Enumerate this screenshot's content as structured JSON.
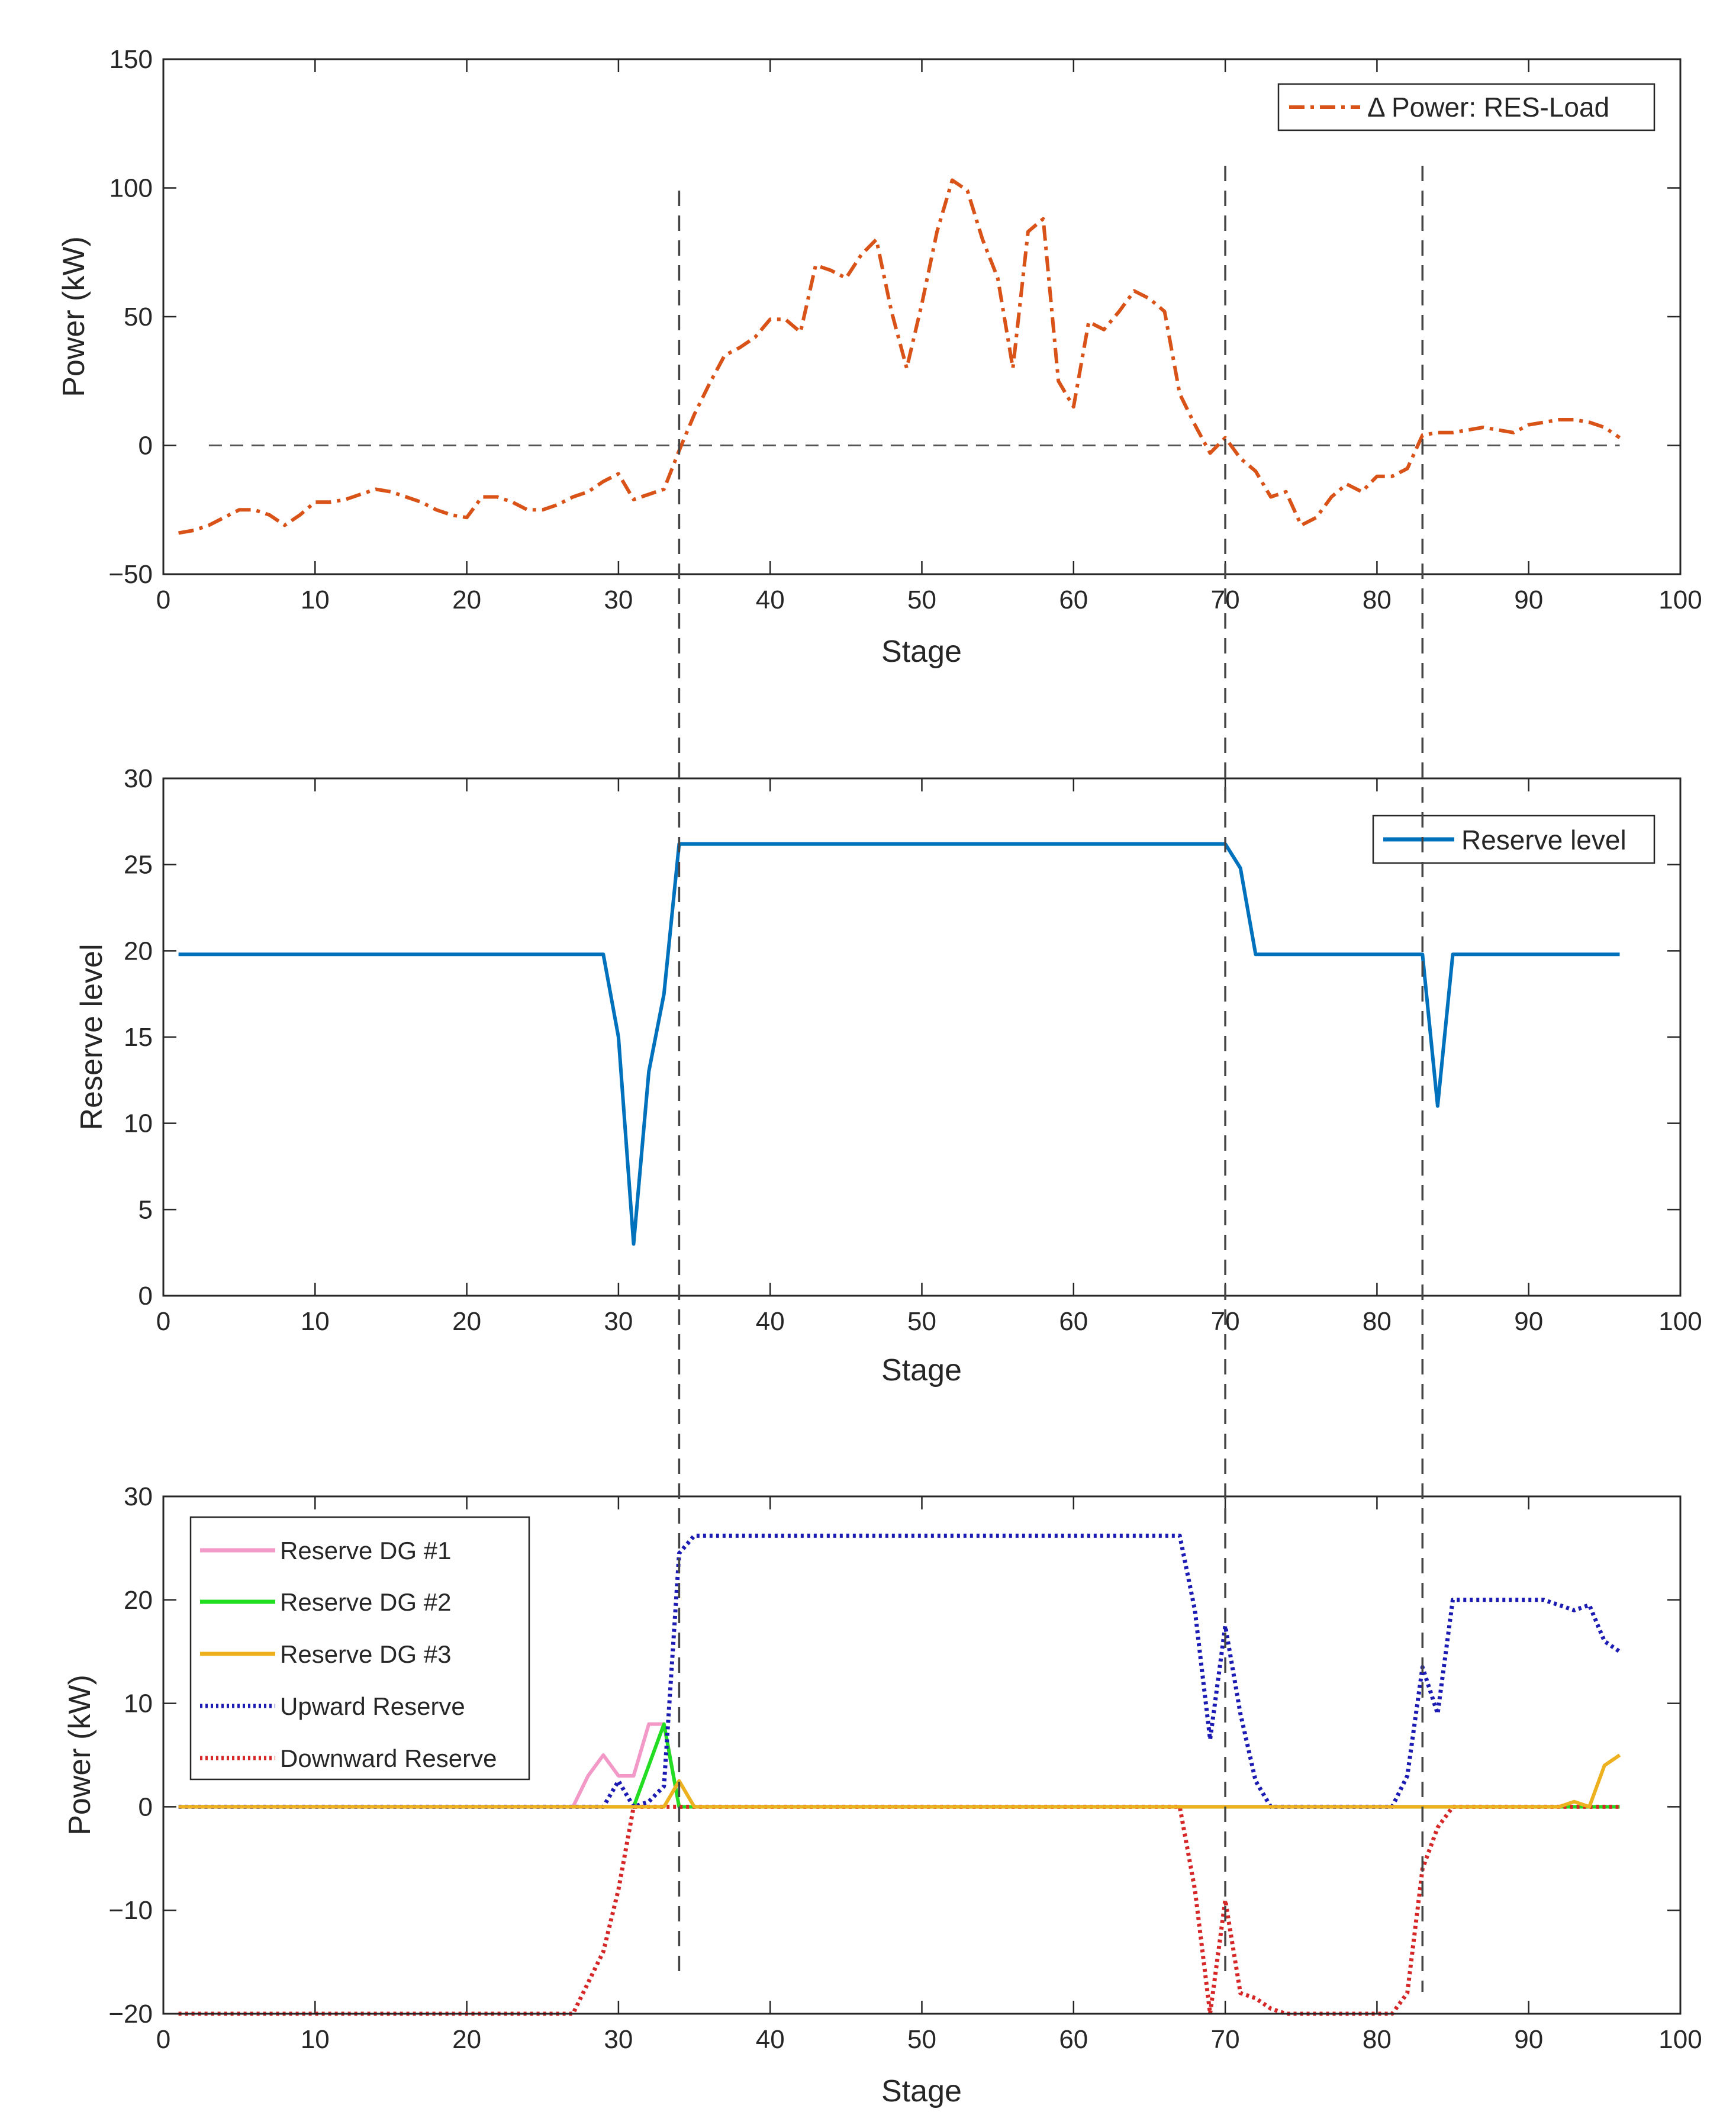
{
  "figure": {
    "x_tick_labels": [
      "0",
      "10",
      "20",
      "30",
      "40",
      "50",
      "60",
      "70",
      "80",
      "90",
      "100"
    ]
  },
  "charts": [
    {
      "type": "line",
      "xlabel": "Stage",
      "ylabel": "Power (kW)",
      "xlim": [
        0,
        100
      ],
      "ylim": [
        -50,
        150
      ],
      "y_tick_labels": [
        "−50",
        "0",
        "50",
        "100",
        "150"
      ],
      "legend": {
        "position": "top-right",
        "entries": [
          "Δ Power: RES-Load"
        ]
      },
      "zero_reference": {
        "x": [
          3,
          96
        ],
        "y": 0
      },
      "vertical_markers": [
        34,
        70,
        83
      ],
      "series": [
        {
          "name": "Δ Power: RES-Load",
          "color": "#D95319",
          "style": "dashdot",
          "x": [
            1,
            2,
            3,
            4,
            5,
            6,
            7,
            8,
            9,
            10,
            11,
            12,
            13,
            14,
            15,
            16,
            17,
            18,
            19,
            20,
            21,
            22,
            23,
            24,
            25,
            26,
            27,
            28,
            29,
            30,
            31,
            32,
            33,
            34,
            35,
            36,
            37,
            38,
            39,
            40,
            41,
            42,
            43,
            44,
            45,
            46,
            47,
            48,
            49,
            50,
            51,
            52,
            53,
            54,
            55,
            56,
            57,
            58,
            59,
            60,
            61,
            62,
            63,
            64,
            65,
            66,
            67,
            68,
            69,
            70,
            71,
            72,
            73,
            74,
            75,
            76,
            77,
            78,
            79,
            80,
            81,
            82,
            83,
            84,
            85,
            86,
            87,
            88,
            89,
            90,
            91,
            92,
            93,
            94,
            95,
            96
          ],
          "y": [
            -34,
            -33,
            -31,
            -28,
            -25,
            -25,
            -27,
            -31,
            -27,
            -22,
            -22,
            -21,
            -19,
            -17,
            -18,
            -20,
            -22,
            -25,
            -27,
            -28,
            -20,
            -20,
            -22,
            -25,
            -25,
            -23,
            -20,
            -18,
            -14,
            -11,
            -21,
            -19,
            -17,
            -2,
            12,
            24,
            35,
            38,
            42,
            49,
            49,
            44,
            70,
            68,
            65,
            74,
            80,
            52,
            30,
            55,
            83,
            103,
            99,
            80,
            65,
            30,
            83,
            88,
            25,
            15,
            48,
            45,
            52,
            60,
            57,
            52,
            20,
            8,
            -3,
            3,
            -5,
            -10,
            -20,
            -18,
            -31,
            -28,
            -20,
            -15,
            -18,
            -12,
            -12,
            -9,
            4,
            5,
            5,
            6,
            7,
            6,
            5,
            8,
            9,
            10,
            10,
            9,
            7,
            3
          ]
        }
      ]
    },
    {
      "type": "line",
      "xlabel": "Stage",
      "ylabel": "Reserve level",
      "xlim": [
        0,
        100
      ],
      "ylim": [
        0,
        30
      ],
      "y_tick_labels": [
        "0",
        "5",
        "10",
        "15",
        "20",
        "25",
        "30"
      ],
      "legend": {
        "position": "top-right",
        "entries": [
          "Reserve level"
        ]
      },
      "vertical_markers": [
        34,
        70,
        83
      ],
      "series": [
        {
          "name": "Reserve level",
          "color": "#0072BD",
          "style": "solid",
          "x": [
            1,
            2,
            3,
            4,
            5,
            6,
            7,
            8,
            9,
            10,
            11,
            12,
            13,
            14,
            15,
            16,
            17,
            18,
            19,
            20,
            21,
            22,
            23,
            24,
            25,
            26,
            27,
            28,
            29,
            30,
            31,
            32,
            33,
            34,
            35,
            36,
            37,
            38,
            39,
            40,
            41,
            42,
            43,
            44,
            45,
            46,
            47,
            48,
            49,
            50,
            51,
            52,
            53,
            54,
            55,
            56,
            57,
            58,
            59,
            60,
            61,
            62,
            63,
            64,
            65,
            66,
            67,
            68,
            69,
            70,
            71,
            72,
            73,
            74,
            75,
            76,
            77,
            78,
            79,
            80,
            81,
            82,
            83,
            84,
            85,
            86,
            87,
            88,
            89,
            90,
            91,
            92,
            93,
            94,
            95,
            96
          ],
          "y": [
            19.8,
            19.8,
            19.8,
            19.8,
            19.8,
            19.8,
            19.8,
            19.8,
            19.8,
            19.8,
            19.8,
            19.8,
            19.8,
            19.8,
            19.8,
            19.8,
            19.8,
            19.8,
            19.8,
            19.8,
            19.8,
            19.8,
            19.8,
            19.8,
            19.8,
            19.8,
            19.8,
            19.8,
            19.8,
            15,
            3,
            13,
            17.5,
            26.2,
            26.2,
            26.2,
            26.2,
            26.2,
            26.2,
            26.2,
            26.2,
            26.2,
            26.2,
            26.2,
            26.2,
            26.2,
            26.2,
            26.2,
            26.2,
            26.2,
            26.2,
            26.2,
            26.2,
            26.2,
            26.2,
            26.2,
            26.2,
            26.2,
            26.2,
            26.2,
            26.2,
            26.2,
            26.2,
            26.2,
            26.2,
            26.2,
            26.2,
            26.2,
            26.2,
            26.2,
            24.8,
            19.8,
            19.8,
            19.8,
            19.8,
            19.8,
            19.8,
            19.8,
            19.8,
            19.8,
            19.8,
            19.8,
            19.8,
            11,
            19.8,
            19.8,
            19.8,
            19.8,
            19.8,
            19.8,
            19.8,
            19.8,
            19.8,
            19.8,
            19.8,
            19.8
          ]
        }
      ]
    },
    {
      "type": "line",
      "xlabel": "Stage",
      "ylabel": "Power (kW)",
      "xlim": [
        0,
        100
      ],
      "ylim": [
        -20,
        30
      ],
      "y_tick_labels": [
        "−20",
        "−10",
        "0",
        "10",
        "20",
        "30"
      ],
      "legend": {
        "position": "top-left",
        "entries": [
          "Reserve DG #1",
          "Reserve DG #2",
          "Reserve DG #3",
          "Upward Reserve",
          "Downward Reserve"
        ]
      },
      "vertical_markers": [
        34,
        70,
        83
      ],
      "series": [
        {
          "name": "Reserve DG #1",
          "color": "#F299C8",
          "style": "solid",
          "x": [
            1,
            26,
            27,
            28,
            29,
            30,
            31,
            32,
            33,
            34,
            96
          ],
          "y": [
            0,
            0,
            0,
            3,
            5,
            3,
            3,
            8,
            8,
            0,
            0
          ]
        },
        {
          "name": "Reserve DG #2",
          "color": "#22DD22",
          "style": "solid",
          "x": [
            1,
            30,
            31,
            32,
            33,
            34,
            96
          ],
          "y": [
            0,
            0,
            0,
            4,
            8,
            0,
            0
          ]
        },
        {
          "name": "Upward Reserve",
          "color": "#1B1BB3",
          "style": "dotted",
          "x": [
            1,
            29,
            30,
            31,
            32,
            33,
            34,
            35,
            36,
            37,
            38,
            66,
            67,
            68,
            69,
            70,
            71,
            72,
            73,
            74,
            80,
            81,
            82,
            83,
            84,
            85,
            86,
            91,
            92,
            93,
            94,
            95,
            96
          ],
          "y": [
            0,
            0,
            2.5,
            0,
            0.5,
            2,
            24.5,
            26.2,
            26.2,
            26.2,
            26.2,
            26.2,
            26.2,
            19,
            6.5,
            17.5,
            9,
            2.5,
            0,
            0,
            0,
            0,
            3,
            13.5,
            9,
            20,
            20,
            20,
            19.5,
            19,
            19.5,
            16,
            15
          ]
        },
        {
          "name": "Downward Reserve",
          "color": "#D62728",
          "style": "dotted",
          "x": [
            1,
            26,
            27,
            28,
            29,
            30,
            31,
            32,
            33,
            34,
            35,
            66,
            67,
            68,
            69,
            70,
            71,
            72,
            73,
            74,
            80,
            81,
            82,
            83,
            84,
            85,
            86,
            96
          ],
          "y": [
            -20,
            -20,
            -20,
            -17,
            -14,
            -8,
            0,
            0,
            0,
            0,
            0,
            0,
            0,
            -8,
            -20,
            -9,
            -18,
            -18.5,
            -19.5,
            -20,
            -20,
            -20,
            -18,
            -6,
            -2,
            0,
            0,
            0
          ]
        },
        {
          "name": "Reserve DG #3",
          "color": "#EDB120",
          "style": "solid",
          "x": [
            1,
            32,
            33,
            34,
            35,
            36,
            92,
            93,
            94,
            95,
            96
          ],
          "y": [
            0,
            0,
            0,
            2.5,
            0,
            0,
            0,
            0.5,
            0,
            4,
            5
          ]
        }
      ]
    }
  ]
}
